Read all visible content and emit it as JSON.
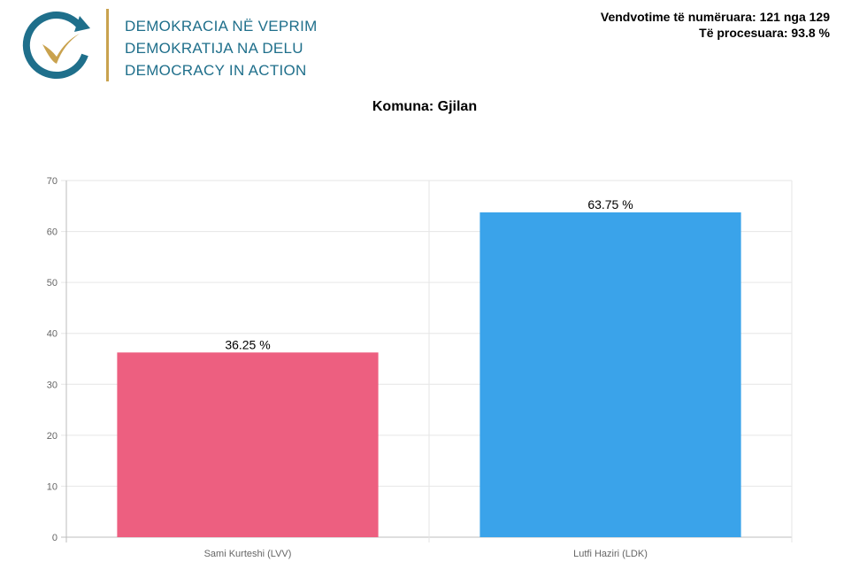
{
  "org": {
    "line1": "DEMOKRACIA NË VEPRIM",
    "line2": "DEMOKRATIJA NA DELU",
    "line3": "DEMOCRACY IN ACTION",
    "logo_icon": "checkmark-circle-arrow-icon"
  },
  "stats": {
    "counted_label": "Vendvotime të numëruara:",
    "counted_value": "121 nga 129",
    "processed_label": "Të procesuara:",
    "processed_value": "93.8 %"
  },
  "colors": {
    "brand_blue": "#1f6f8b",
    "brand_gold": "#c9a24e",
    "bar_red": "#ed5f80",
    "bar_blue": "#3aa3ea"
  },
  "chart_data": {
    "type": "bar",
    "title": "Komuna: Gjilan",
    "categories": [
      "Sami Kurteshi (LVV)",
      "Lutfi Haziri (LDK)"
    ],
    "values": [
      36.25,
      63.75
    ],
    "value_labels": [
      "36.25 %",
      "63.75 %"
    ],
    "colors": [
      "#ed5f80",
      "#3aa3ea"
    ],
    "ylim": [
      0,
      70
    ],
    "yticks": [
      0,
      10,
      20,
      30,
      40,
      50,
      60,
      70
    ],
    "xlabel": "",
    "ylabel": "",
    "grid": true
  }
}
